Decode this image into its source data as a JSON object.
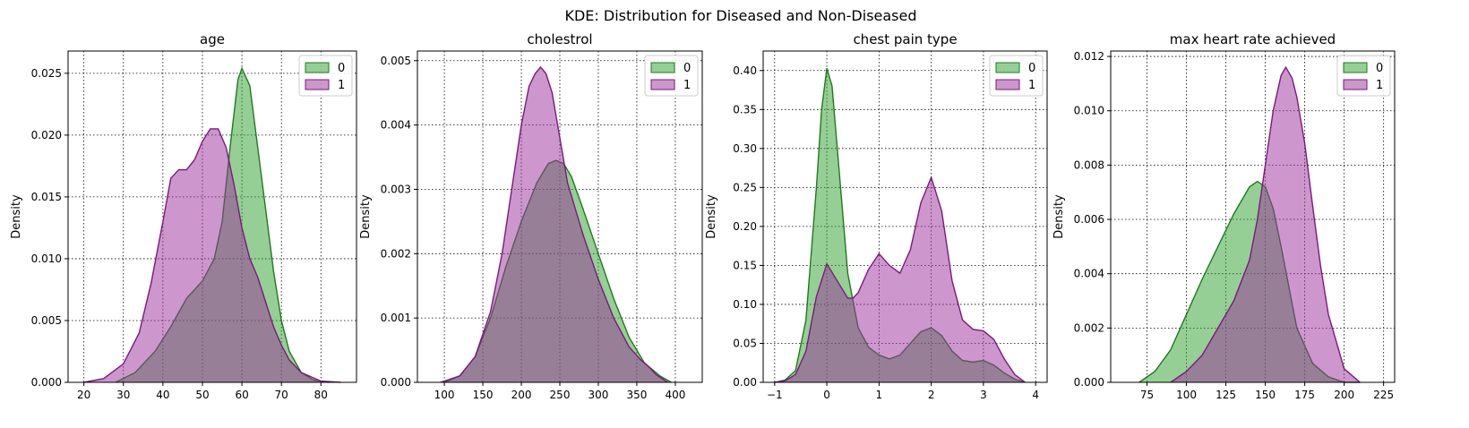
{
  "figure": {
    "suptitle": "KDE: Distribution for Diseased and Non-Diseased"
  },
  "colors": {
    "group0_fill": "#2ca02c",
    "group0_line": "#1f7a1f",
    "group1_fill": "#9b2f9b",
    "group1_line": "#7a1a7a",
    "grid": "#000000"
  },
  "chart_data": [
    {
      "type": "area",
      "title": "age",
      "xlabel": "",
      "ylabel": "Density",
      "xlim": [
        16,
        89
      ],
      "ylim": [
        0,
        0.0268
      ],
      "xticks": [
        20,
        30,
        40,
        50,
        60,
        70,
        80
      ],
      "yticks": [
        0.0,
        0.005,
        0.01,
        0.015,
        0.02,
        0.025
      ],
      "ytick_decimals": 3,
      "grid": true,
      "legend": {
        "position": "top-right",
        "entries": [
          "0",
          "1"
        ]
      },
      "series": [
        {
          "name": "0",
          "x": [
            28,
            33,
            38,
            42,
            46,
            50,
            53,
            55,
            57,
            59,
            60,
            62,
            64,
            66,
            68,
            70,
            72,
            75,
            78,
            82
          ],
          "y": [
            0.0,
            0.0008,
            0.0025,
            0.0045,
            0.0068,
            0.0082,
            0.01,
            0.013,
            0.019,
            0.0245,
            0.0254,
            0.024,
            0.019,
            0.014,
            0.009,
            0.005,
            0.0025,
            0.0008,
            0.0002,
            0.0
          ]
        },
        {
          "name": "1",
          "x": [
            20,
            25,
            30,
            34,
            37,
            40,
            42,
            44,
            46,
            48,
            50,
            52,
            54,
            56,
            58,
            60,
            62,
            64,
            66,
            68,
            70,
            72,
            75,
            80,
            85
          ],
          "y": [
            0.0,
            0.0003,
            0.0015,
            0.004,
            0.008,
            0.013,
            0.0165,
            0.0172,
            0.0172,
            0.018,
            0.0195,
            0.0205,
            0.0205,
            0.019,
            0.016,
            0.0125,
            0.01,
            0.0085,
            0.0065,
            0.0045,
            0.003,
            0.0018,
            0.0008,
            0.0001,
            0.0
          ]
        }
      ]
    },
    {
      "type": "area",
      "title": "cholestrol",
      "xlabel": "",
      "ylabel": "Density",
      "xlim": [
        65,
        435
      ],
      "ylim": [
        0,
        0.00515
      ],
      "xticks": [
        100,
        150,
        200,
        250,
        300,
        350,
        400
      ],
      "yticks": [
        0.0,
        0.001,
        0.002,
        0.003,
        0.004,
        0.005
      ],
      "ytick_decimals": 3,
      "grid": true,
      "legend": {
        "position": "top-right",
        "entries": [
          "0",
          "1"
        ]
      },
      "series": [
        {
          "name": "0",
          "x": [
            100,
            120,
            140,
            160,
            180,
            200,
            220,
            235,
            245,
            255,
            265,
            280,
            300,
            320,
            340,
            360,
            380,
            395
          ],
          "y": [
            0.0,
            0.0001,
            0.0004,
            0.001,
            0.0018,
            0.0025,
            0.0031,
            0.0034,
            0.00345,
            0.0034,
            0.0032,
            0.0027,
            0.002,
            0.0013,
            0.0007,
            0.0003,
            0.0001,
            0.0
          ]
        },
        {
          "name": "1",
          "x": [
            95,
            120,
            140,
            160,
            175,
            190,
            200,
            210,
            218,
            225,
            232,
            240,
            250,
            260,
            270,
            280,
            300,
            320,
            340,
            355,
            365,
            375,
            390
          ],
          "y": [
            0.0,
            0.0001,
            0.0004,
            0.0011,
            0.002,
            0.0032,
            0.004,
            0.0046,
            0.0048,
            0.0049,
            0.0048,
            0.0045,
            0.0038,
            0.0031,
            0.0027,
            0.0023,
            0.0016,
            0.001,
            0.00055,
            0.00035,
            0.00025,
            0.00012,
            0.0
          ]
        }
      ]
    },
    {
      "type": "area",
      "title": "chest pain type",
      "xlabel": "",
      "ylabel": "Density",
      "xlim": [
        -1.22,
        4.22
      ],
      "ylim": [
        0,
        0.425
      ],
      "xticks": [
        -1,
        0,
        1,
        2,
        3,
        4
      ],
      "yticks": [
        0.0,
        0.05,
        0.1,
        0.15,
        0.2,
        0.25,
        0.3,
        0.35,
        0.4
      ],
      "ytick_decimals": 2,
      "grid": true,
      "legend": {
        "position": "top-right",
        "entries": [
          "0",
          "1"
        ]
      },
      "series": [
        {
          "name": "0",
          "x": [
            -1,
            -0.8,
            -0.6,
            -0.4,
            -0.2,
            -0.1,
            0,
            0.1,
            0.2,
            0.4,
            0.6,
            0.8,
            1.0,
            1.2,
            1.4,
            1.6,
            1.8,
            2.0,
            2.2,
            2.4,
            2.6,
            2.8,
            3.0,
            3.2,
            3.4,
            3.6,
            3.8
          ],
          "y": [
            0.0,
            0.003,
            0.015,
            0.08,
            0.25,
            0.35,
            0.403,
            0.38,
            0.3,
            0.14,
            0.07,
            0.045,
            0.035,
            0.03,
            0.035,
            0.05,
            0.065,
            0.07,
            0.06,
            0.04,
            0.028,
            0.026,
            0.028,
            0.022,
            0.012,
            0.004,
            0.0
          ]
        },
        {
          "name": "1",
          "x": [
            -1,
            -0.8,
            -0.6,
            -0.4,
            -0.2,
            0,
            0.2,
            0.4,
            0.5,
            0.6,
            0.8,
            1.0,
            1.2,
            1.4,
            1.6,
            1.8,
            2.0,
            2.2,
            2.4,
            2.6,
            2.8,
            3.0,
            3.2,
            3.4,
            3.6,
            3.8
          ],
          "y": [
            0.0,
            0.002,
            0.01,
            0.04,
            0.11,
            0.152,
            0.13,
            0.108,
            0.108,
            0.115,
            0.145,
            0.165,
            0.15,
            0.14,
            0.17,
            0.23,
            0.263,
            0.22,
            0.13,
            0.08,
            0.068,
            0.066,
            0.055,
            0.03,
            0.01,
            0.0
          ]
        }
      ]
    },
    {
      "type": "area",
      "title": "max heart rate achieved",
      "xlabel": "",
      "ylabel": "Density",
      "xlim": [
        52,
        232
      ],
      "ylim": [
        0,
        0.0122
      ],
      "xticks": [
        75,
        100,
        125,
        150,
        175,
        200,
        225
      ],
      "yticks": [
        0.0,
        0.002,
        0.004,
        0.006,
        0.008,
        0.01,
        0.012
      ],
      "ytick_decimals": 3,
      "grid": true,
      "legend": {
        "position": "top-right",
        "entries": [
          "0",
          "1"
        ]
      },
      "series": [
        {
          "name": "0",
          "x": [
            70,
            80,
            90,
            100,
            110,
            120,
            130,
            140,
            145,
            150,
            155,
            160,
            165,
            170,
            180,
            190,
            200,
            210
          ],
          "y": [
            0.0,
            0.0004,
            0.0012,
            0.0025,
            0.0038,
            0.005,
            0.0062,
            0.0072,
            0.0074,
            0.0072,
            0.0064,
            0.005,
            0.0035,
            0.002,
            0.0007,
            0.0002,
            0.0,
            0.0
          ]
        },
        {
          "name": "1",
          "x": [
            90,
            100,
            110,
            120,
            125,
            130,
            140,
            145,
            150,
            155,
            160,
            163,
            167,
            170,
            175,
            180,
            185,
            190,
            200,
            210
          ],
          "y": [
            0.0,
            0.0004,
            0.001,
            0.002,
            0.0025,
            0.003,
            0.0045,
            0.006,
            0.008,
            0.01,
            0.0113,
            0.0116,
            0.0112,
            0.0105,
            0.0088,
            0.0065,
            0.0043,
            0.0025,
            0.0005,
            0.0
          ]
        }
      ]
    }
  ]
}
